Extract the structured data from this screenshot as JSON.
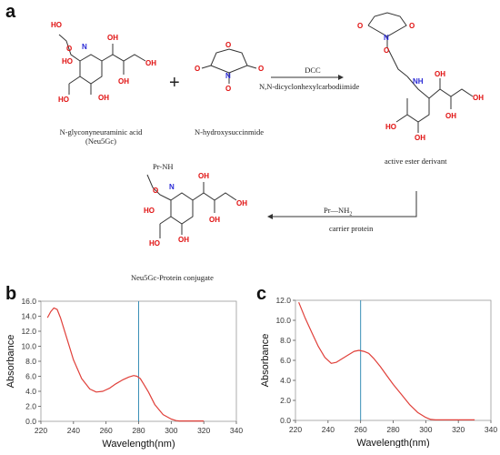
{
  "panels": {
    "a": "a",
    "b": "b",
    "c": "c"
  },
  "scheme": {
    "compound1_name_line1": "N-glyconyneuraminic acid",
    "compound1_name_line2": "(Neu5Gc)",
    "plus": "+",
    "compound2_name": "N-hydroxysuccinmide",
    "reagent_line1": "DCC",
    "reagent_line2": "N,N-dicyclonhexylcarbodiimide",
    "product1_name": "active ester derivant",
    "reagent2_line1": "Pr—NH",
    "reagent2_subscript": "2",
    "reagent2_line2": "carrier protein",
    "product2_name": "Neu5Gc-Protein conjugate",
    "pr_nh_label": "Pr-NH"
  },
  "atoms": {
    "O": "O",
    "OH": "OH",
    "HO": "HO",
    "H": "H",
    "N": "N",
    "NH": "NH"
  },
  "colors": {
    "line": "#e0403a",
    "marker": "#3a8fb7",
    "axis": "#555555",
    "oxygen": "#e01010",
    "nitrogen": "#2a2ad6",
    "bond": "#333333"
  },
  "chart_data": [
    {
      "type": "line",
      "panel": "b",
      "xlabel": "Wavelength(nm)",
      "ylabel": "Absorbance",
      "xlim": [
        220,
        340
      ],
      "ylim": [
        0,
        16
      ],
      "xticks": [
        "220",
        "240",
        "260",
        "280",
        "300",
        "320",
        "340"
      ],
      "yticks": [
        "0.0",
        "2.0",
        "4.0",
        "6.0",
        "8.0",
        "10.0",
        "12.0",
        "14.0",
        "16.0"
      ],
      "marker_x": 280,
      "series": [
        {
          "x": [
            224,
            226,
            228,
            230,
            232,
            236,
            240,
            245,
            250,
            254,
            258,
            262,
            266,
            270,
            274,
            277,
            279,
            281,
            283,
            286,
            290,
            295,
            300,
            303,
            305,
            307,
            310,
            315,
            320
          ],
          "y": [
            13.8,
            14.6,
            15.1,
            14.9,
            13.8,
            11.0,
            8.2,
            5.7,
            4.3,
            3.9,
            4.0,
            4.4,
            5.0,
            5.5,
            5.9,
            6.1,
            6.0,
            5.7,
            5.0,
            3.9,
            2.2,
            0.9,
            0.3,
            0.1,
            0.05,
            0.05,
            0.05,
            0.05,
            0.05
          ]
        }
      ]
    },
    {
      "type": "line",
      "panel": "c",
      "xlabel": "Wavelength(nm)",
      "ylabel": "Absorbance",
      "xlim": [
        220,
        340
      ],
      "ylim": [
        0,
        12
      ],
      "xticks": [
        "220",
        "240",
        "260",
        "280",
        "300",
        "320",
        "340"
      ],
      "yticks": [
        "0.0",
        "2.0",
        "4.0",
        "6.0",
        "8.0",
        "10.0",
        "12.0"
      ],
      "marker_x": 260,
      "series": [
        {
          "x": [
            222,
            226,
            230,
            234,
            238,
            242,
            245,
            248,
            252,
            256,
            259,
            262,
            265,
            268,
            272,
            276,
            280,
            285,
            290,
            295,
            300,
            303,
            306,
            310,
            320,
            330
          ],
          "y": [
            11.8,
            10.2,
            8.8,
            7.4,
            6.3,
            5.7,
            5.8,
            6.1,
            6.5,
            6.9,
            7.0,
            6.9,
            6.7,
            6.2,
            5.4,
            4.5,
            3.6,
            2.6,
            1.6,
            0.8,
            0.3,
            0.1,
            0.05,
            0.05,
            0.05,
            0.05
          ]
        }
      ]
    }
  ]
}
